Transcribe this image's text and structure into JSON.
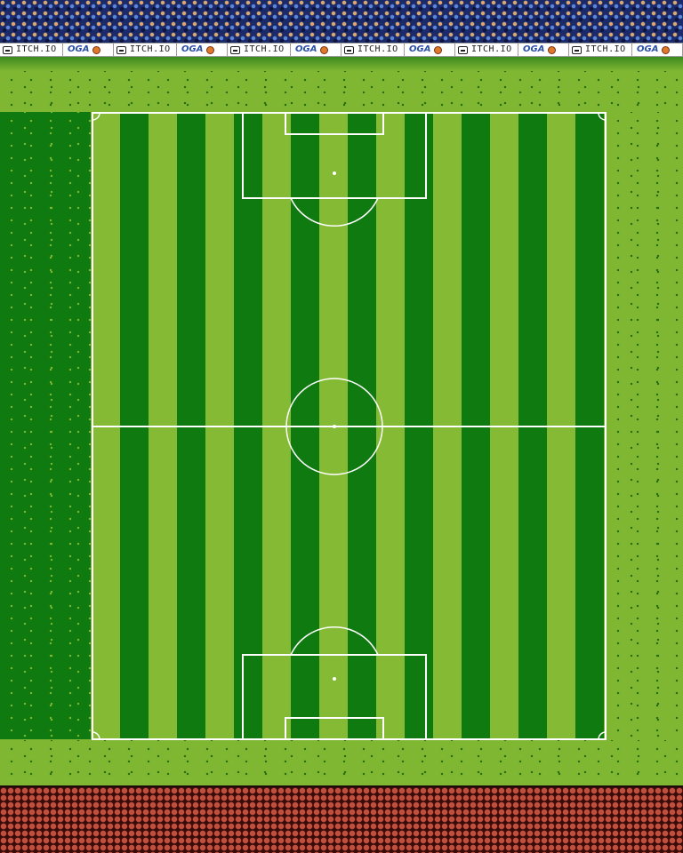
{
  "scene": {
    "colors": {
      "pitch_light": "#85bb34",
      "pitch_dark": "#0f7a0f",
      "surround_grass": "#7fb632",
      "line": "#ffffff",
      "crowd": "#1a2a6b",
      "track": "#c0503c"
    },
    "ad_boards": [
      {
        "site": "ITCH.IO",
        "brand": "OGA"
      },
      {
        "site": "ITCH.IO",
        "brand": "OGA"
      },
      {
        "site": "ITCH.IO",
        "brand": "OGA"
      },
      {
        "site": "ITCH.IO",
        "brand": "OGA"
      },
      {
        "site": "ITCH.IO",
        "brand": "OGA"
      },
      {
        "site": "ITCH.IO",
        "brand": "OGA"
      }
    ],
    "icons": [
      "controller-icon",
      "ball-icon"
    ]
  }
}
